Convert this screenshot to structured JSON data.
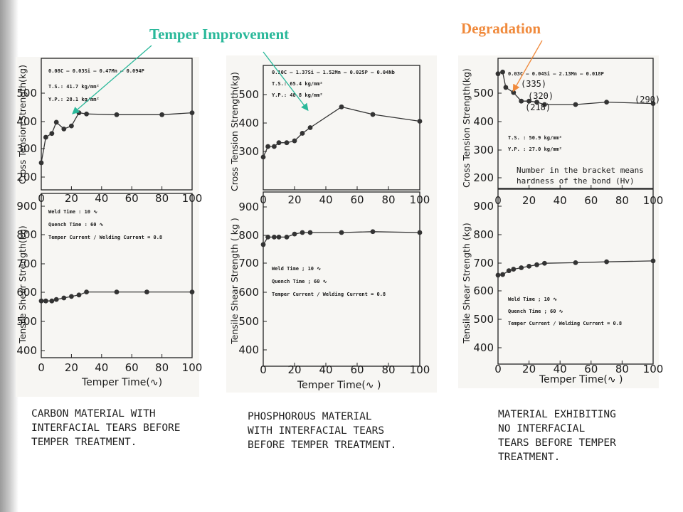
{
  "annotations": {
    "temper_improvement": {
      "text": "Temper Improvement",
      "color": "#2ab89a"
    },
    "degradation": {
      "text": "Degradation",
      "color": "#f08a3c"
    }
  },
  "chart_data": [
    {
      "type": "line",
      "panel": "carbon",
      "caption": [
        "CARBON MATERIAL WITH",
        "INTERFACIAL TEARS BEFORE",
        "TEMPER TREATMENT."
      ],
      "xlabel": "Temper Time(∿)",
      "x_ticks": [
        "0",
        "20",
        "40",
        "60",
        "80",
        "100"
      ],
      "xlim": [
        0,
        100
      ],
      "top": {
        "ylabel": "Cross Tension Strength(kg)",
        "ylim": [
          200,
          550
        ],
        "y_ticks": [
          "200",
          "300",
          "400",
          "500"
        ],
        "notes": [
          "0.08C — 0.03Si — 0.47Mn — 0.094P",
          "T.S.: 41.7 kg/mm²",
          "Y.P.: 28.1 kg/mm²"
        ],
        "series": [
          {
            "x": [
              0,
              3,
              7,
              10,
              15,
              20,
              25,
              30,
              50,
              80,
              100
            ],
            "y": [
              272,
              340,
              350,
              380,
              362,
              370,
              405,
              402,
              400,
              400,
              405
            ]
          }
        ]
      },
      "bottom": {
        "ylabel": "Tensile Shear Strength(kg)",
        "ylim": [
          400,
          950
        ],
        "y_ticks": [
          "400",
          "500",
          "600",
          "700",
          "800",
          "900"
        ],
        "notes": [
          "Weld Time : 10 ∿",
          "Quench Time : 60 ∿",
          "Temper Current / Welding Current = 0.8"
        ],
        "series": [
          {
            "x": [
              0,
              3,
              7,
              10,
              15,
              20,
              25,
              30,
              50,
              70,
              100
            ],
            "y": [
              590,
              590,
              590,
              595,
              600,
              605,
              610,
              620,
              620,
              620,
              620
            ]
          }
        ]
      }
    },
    {
      "type": "line",
      "panel": "phosphorous",
      "caption": [
        "PHOSPHOROUS MATERIAL",
        "WITH INTERFACIAL TEARS",
        "BEFORE TEMPER TREATMENT."
      ],
      "xlabel": "Temper  Time(∿ )",
      "x_ticks": [
        "0",
        "20",
        "40",
        "60",
        "80",
        "100"
      ],
      "xlim": [
        0,
        100
      ],
      "top": {
        "ylabel": "Cross Tension Strength(kg)",
        "ylim": [
          250,
          580
        ],
        "y_ticks": [
          "300",
          "400",
          "500"
        ],
        "notes": [
          "0.10C — 1.37Si — 1.52Mn — 0.025P — 0.04Nb",
          "T.S.: 65.4 kg/mm²",
          "Y.P.: 48.8 kg/mm²"
        ],
        "series": [
          {
            "x": [
              0,
              3,
              7,
              10,
              15,
              20,
              25,
              30,
              50,
              70,
              100
            ],
            "y": [
              337,
              365,
              365,
              375,
              375,
              380,
              400,
              415,
              470,
              450,
              432
            ]
          }
        ]
      },
      "bottom": {
        "ylabel": "Tensile Shear Strength ( kg )",
        "ylim": [
          370,
          950
        ],
        "y_ticks": [
          "400",
          "500",
          "600",
          "700",
          "800",
          "900"
        ],
        "notes": [
          "Weld Time ; 10 ∿",
          "Quench Time ; 60 ∿",
          "Temper Current / Welding Current = 0.8"
        ],
        "series": [
          {
            "x": [
              0,
              3,
              7,
              10,
              15,
              20,
              25,
              30,
              50,
              70,
              100
            ],
            "y": [
              775,
              800,
              800,
              800,
              800,
              810,
              815,
              815,
              815,
              818,
              815
            ]
          }
        ]
      }
    },
    {
      "type": "line",
      "panel": "no_tears",
      "caption": [
        "MATERIAL EXHIBITING",
        "NO INTERFACIAL",
        "TEARS BEFORE TEMPER",
        "TREATMENT."
      ],
      "xlabel": "Temper  Time(∿ )",
      "x_ticks": [
        "0",
        "20",
        "40",
        "60",
        "80",
        "100"
      ],
      "xlim": [
        0,
        100
      ],
      "top": {
        "ylabel": "Cross Tension Strength(kg)",
        "ylim": [
          180,
          560
        ],
        "y_ticks": [
          "200",
          "300",
          "400",
          "500"
        ],
        "notes": [
          "0.03C — 0.04Si — 2.13Mn — 0.018P",
          "T.S. :  50.9 kg/mm²",
          "Y.P. :  27.0 kg/mm²"
        ],
        "legend_note": [
          "Number in the bracket means",
          "hardness of the bond (Hv)"
        ],
        "hardness_labels": [
          "(335)",
          "(320)",
          "(218)",
          "(290)"
        ],
        "series": [
          {
            "x": [
              0,
              3,
              5,
              10,
              15,
              20,
              25,
              30,
              50,
              70,
              100
            ],
            "y": [
              515,
              520,
              475,
              460,
              435,
              435,
              432,
              425,
              425,
              432,
              428
            ]
          }
        ]
      },
      "bottom": {
        "ylabel": "Tensile Shear Strength (kg)",
        "ylim": [
          370,
          960
        ],
        "y_ticks": [
          "400",
          "500",
          "600",
          "700",
          "800",
          "900"
        ],
        "notes": [
          "Weld Time ; 10 ∿",
          "Quench Time ; 60 ∿",
          "Temper Current / Welding Current = 0.8"
        ],
        "series": [
          {
            "x": [
              0,
              3,
              7,
              10,
              15,
              20,
              25,
              30,
              50,
              70,
              100
            ],
            "y": [
              670,
              672,
              685,
              690,
              695,
              700,
              705,
              710,
              712,
              715,
              718
            ]
          }
        ]
      }
    }
  ]
}
